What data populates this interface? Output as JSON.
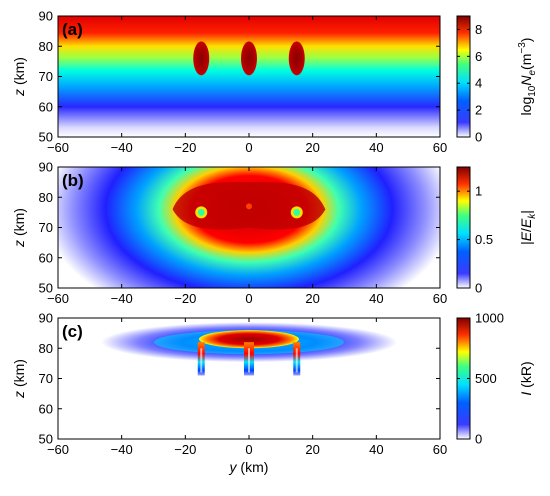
{
  "colormap": "jet-like: white at minimum, blue, cyan, green, yellow, red, dark red at maximum",
  "colormap_stops": [
    "#ffffff",
    "#0000ff",
    "#00ffff",
    "#ffff00",
    "#ff0000",
    "#800000"
  ],
  "chart_data": [
    {
      "type": "heatmap",
      "panel_label": "(a)",
      "xlabel": "",
      "ylabel_var": "z",
      "ylabel_unit": " (km)",
      "xlim": [
        -60,
        60
      ],
      "ylim": [
        50,
        90
      ],
      "xticks": [
        "−60",
        "−40",
        "−20",
        "0",
        "20",
        "40",
        "60"
      ],
      "yticks": [
        "50",
        "60",
        "70",
        "80",
        "90"
      ],
      "colorbar": {
        "label_prefix": "log",
        "label_sub": "10",
        "label_var": "N",
        "label_var_sub": "e",
        "label_unit": "(m",
        "label_unit_sup": "−3",
        "label_close": ")",
        "range": [
          0,
          9
        ],
        "ticks": [
          "0",
          "2",
          "4",
          "6",
          "8"
        ],
        "tick_values": [
          0,
          2,
          4,
          6,
          8
        ]
      },
      "field": {
        "background": "log10 Ne increases with altitude: about 0 at 50 km, about 5.5 at 70 km, about 9 at 90 km",
        "background_profile": [
          [
            50,
            0
          ],
          [
            60,
            2.5
          ],
          [
            70,
            5.5
          ],
          [
            80,
            7.5
          ],
          [
            90,
            9
          ]
        ],
        "columns": [
          {
            "y": -15,
            "z": 76,
            "value": 9
          },
          {
            "y": 0,
            "z": 76,
            "value": 9
          },
          {
            "y": 15,
            "z": 76,
            "value": 9
          }
        ]
      }
    },
    {
      "type": "heatmap",
      "panel_label": "(b)",
      "xlabel": "",
      "ylabel_var": "z",
      "ylabel_unit": " (km)",
      "xlim": [
        -60,
        60
      ],
      "ylim": [
        50,
        90
      ],
      "xticks": [
        "−60",
        "−40",
        "−20",
        "0",
        "20",
        "40",
        "60"
      ],
      "yticks": [
        "50",
        "60",
        "70",
        "80",
        "90"
      ],
      "colorbar": {
        "label_open": "|",
        "label_var": "E",
        "label_slash": "/",
        "label_var2": "E",
        "label_var2_sub": "k",
        "label_close": "|",
        "range": [
          0,
          1.25
        ],
        "ticks": [
          "0",
          "0.5",
          "1"
        ],
        "tick_values": [
          0,
          0.5,
          1
        ]
      },
      "field": {
        "description": "elliptical region centred at y=0, z=78; |E/Ek| above 1 in the centre, decaying to 0 at |y|≈60 km and z≈55 km; green dots at y=±15 km, z=75 km",
        "center": [
          0,
          78
        ],
        "peak": 1.25
      }
    },
    {
      "type": "heatmap",
      "panel_label": "(c)",
      "xlabel_var": "y",
      "xlabel_unit": " (km)",
      "ylabel_var": "z",
      "ylabel_unit": " (km)",
      "xlim": [
        -60,
        60
      ],
      "ylim": [
        50,
        90
      ],
      "xticks": [
        "−60",
        "−40",
        "−20",
        "0",
        "20",
        "40",
        "60"
      ],
      "yticks": [
        "50",
        "60",
        "70",
        "80",
        "90"
      ],
      "colorbar": {
        "label_var": "I",
        "label_unit": " (kR)",
        "range": [
          0,
          1000
        ],
        "ticks": [
          "0",
          "500",
          "1000"
        ],
        "tick_values": [
          0,
          500,
          1000
        ]
      },
      "field": {
        "description": "thin emission layer centred at z≈82 km; peak about 1000 kR near y=0, z=83 km; vertical streaks at y=−15, 0, 15 km from 72 to 80 km",
        "center": [
          0,
          82
        ],
        "peak": 1000,
        "streaks_y": [
          -15,
          0,
          15
        ]
      }
    }
  ]
}
